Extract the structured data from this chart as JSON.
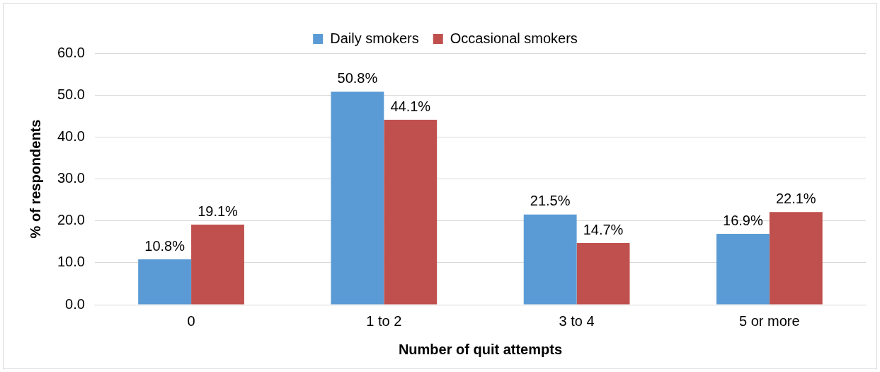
{
  "chart_data": {
    "type": "bar",
    "xlabel": "Number of quit attempts",
    "ylabel": "% of respondents",
    "categories": [
      "0",
      "1 to 2",
      "3 to 4",
      "5 or more"
    ],
    "series": [
      {
        "name": "Daily smokers",
        "color": "#5b9bd5",
        "values": [
          10.8,
          50.8,
          21.5,
          16.9
        ],
        "value_labels": [
          "10.8%",
          "50.8%",
          "21.5%",
          "16.9%"
        ]
      },
      {
        "name": "Occasional smokers",
        "color": "#c0504d",
        "values": [
          19.1,
          44.1,
          14.7,
          22.1
        ],
        "value_labels": [
          "19.1%",
          "44.1%",
          "14.7%",
          "22.1%"
        ]
      }
    ],
    "ylim": [
      0,
      60
    ],
    "yticks": [
      {
        "value": 0,
        "label": "0.0"
      },
      {
        "value": 10,
        "label": "10.0"
      },
      {
        "value": 20,
        "label": "20.0"
      },
      {
        "value": 30,
        "label": "30.0"
      },
      {
        "value": 40,
        "label": "40.0"
      },
      {
        "value": 50,
        "label": "50.0"
      },
      {
        "value": 60,
        "label": "60.0"
      }
    ],
    "grid": "y",
    "legend": "top"
  }
}
